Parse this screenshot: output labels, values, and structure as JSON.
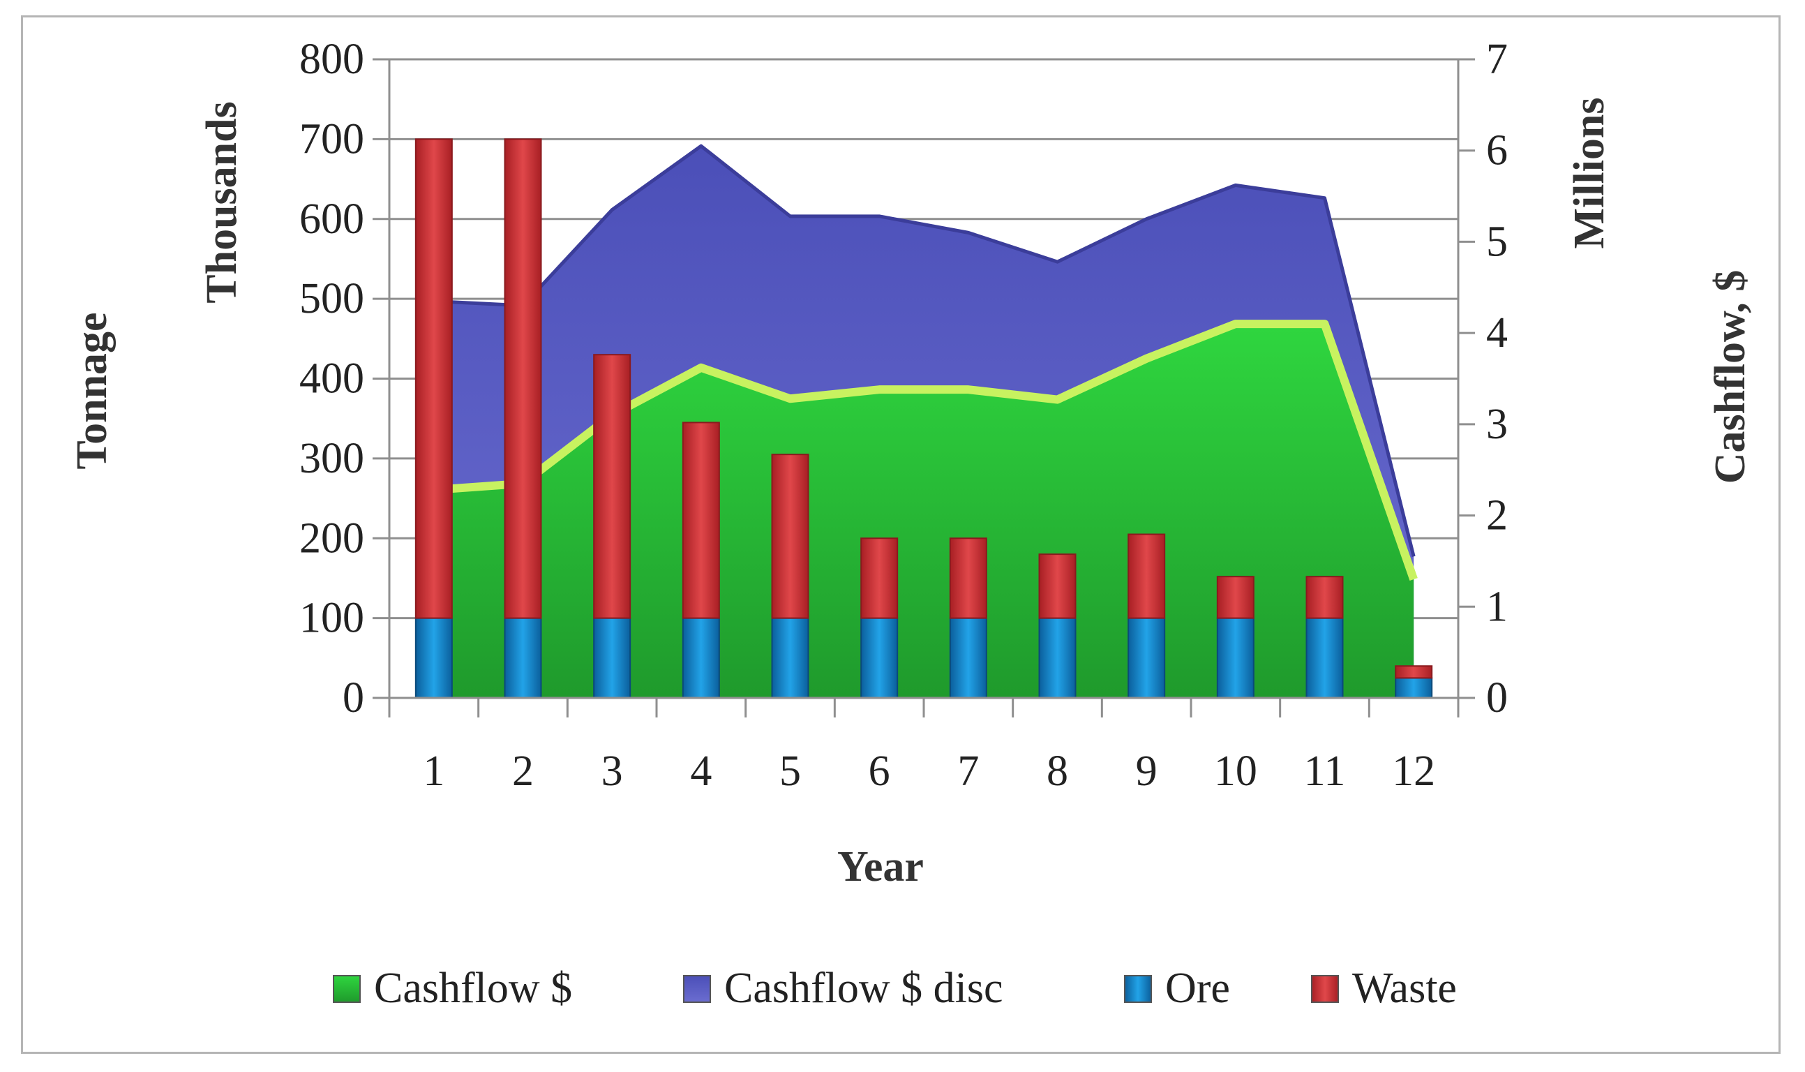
{
  "chart_data": {
    "type": "bar",
    "combo": "stacked-bar + area",
    "categories": [
      "1",
      "2",
      "3",
      "4",
      "5",
      "6",
      "7",
      "8",
      "9",
      "10",
      "11",
      "12"
    ],
    "xlabel": "Year",
    "ylabel_left": "Tonnage",
    "ylabel_left_unit": "Thousands",
    "ylabel_right": "Cashflow, $",
    "ylabel_right_unit": "Millions",
    "ylim_left": [
      0,
      800
    ],
    "yticks_left": [
      0,
      100,
      200,
      300,
      400,
      500,
      600,
      700,
      800
    ],
    "ylim_right": [
      0,
      7
    ],
    "yticks_right": [
      0,
      1,
      2,
      3,
      4,
      5,
      6,
      7
    ],
    "grid": true,
    "legend_position": "bottom",
    "bar_series": [
      {
        "name": "Ore",
        "values": [
          100,
          100,
          100,
          100,
          100,
          100,
          100,
          100,
          100,
          100,
          100,
          25
        ],
        "color": "#1a8fd6"
      },
      {
        "name": "Waste",
        "values": [
          600,
          600,
          330,
          245,
          205,
          100,
          100,
          80,
          105,
          52,
          52,
          15
        ],
        "color": "#d63a3a"
      }
    ],
    "area_series": [
      {
        "name": "Cashflow $ disc",
        "axis": "right",
        "values": [
          4.35,
          4.3,
          5.35,
          6.05,
          5.28,
          5.28,
          5.1,
          4.78,
          5.25,
          5.62,
          5.48,
          1.55
        ],
        "color": "#5a5cc0"
      },
      {
        "name": "Cashflow $",
        "axis": "right",
        "values": [
          2.28,
          2.35,
          3.1,
          3.62,
          3.28,
          3.38,
          3.38,
          3.27,
          3.72,
          4.1,
          4.1,
          1.3
        ],
        "color": "#27c23a"
      }
    ],
    "legend": [
      {
        "name": "Cashflow $",
        "color": "#27c23a"
      },
      {
        "name": "Cashflow $ disc",
        "color": "#5a5cc0"
      },
      {
        "name": "Ore",
        "color": "#1a8fd6"
      },
      {
        "name": "Waste",
        "color": "#d63a3a"
      }
    ]
  }
}
